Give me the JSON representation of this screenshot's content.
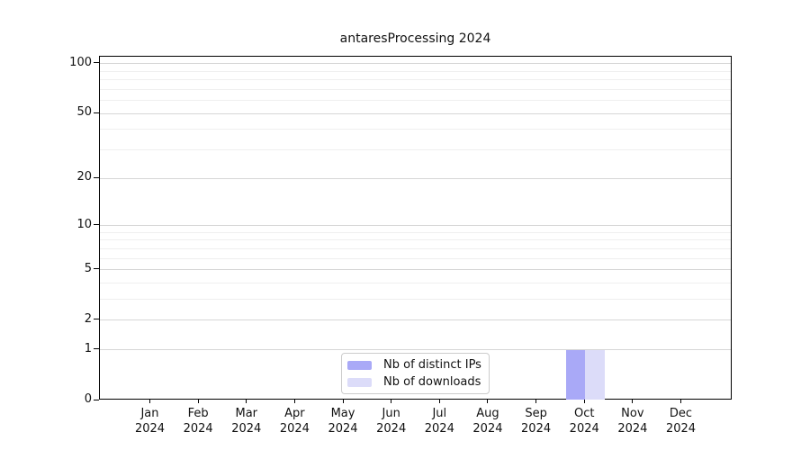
{
  "chart_data": {
    "type": "bar",
    "title": "antaresProcessing 2024",
    "categories": [
      "Jan",
      "Feb",
      "Mar",
      "Apr",
      "May",
      "Jun",
      "Jul",
      "Aug",
      "Sep",
      "Oct",
      "Nov",
      "Dec"
    ],
    "year_label": "2024",
    "series": [
      {
        "name": "Nb of distinct IPs",
        "color": "#a9a9f7",
        "values": [
          0,
          0,
          0,
          0,
          0,
          0,
          0,
          0,
          0,
          1,
          0,
          0
        ]
      },
      {
        "name": "Nb of downloads",
        "color": "#dcdcf9",
        "values": [
          0,
          0,
          0,
          0,
          0,
          0,
          0,
          0,
          0,
          1,
          0,
          0
        ]
      }
    ],
    "yscale": "log1p",
    "ylim": [
      0,
      110
    ],
    "yticks": [
      0,
      1,
      2,
      5,
      10,
      20,
      50,
      100
    ],
    "major_grid_values": [
      1,
      2,
      5,
      10,
      20,
      50,
      100
    ],
    "minor_grid_values": [
      3,
      4,
      6,
      7,
      8,
      9,
      30,
      40,
      60,
      70,
      80,
      90
    ],
    "legend_position": "bottom-center",
    "grid_on": true,
    "colors": {
      "major_grid": "#d6d6d6",
      "minor_grid": "#efefef",
      "axis": "#000000",
      "text": "#111111",
      "legend_border": "#cccccc",
      "background": "#ffffff"
    }
  }
}
